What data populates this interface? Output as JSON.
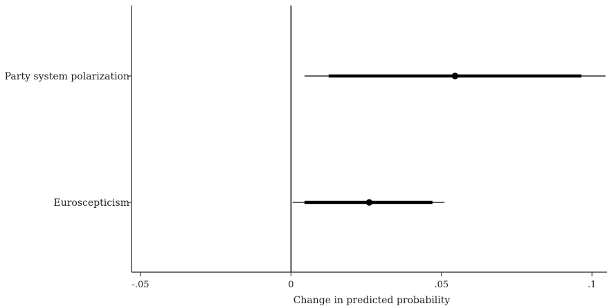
{
  "chart_data": {
    "type": "coefficient-plot",
    "title": "",
    "xlabel": "Change in predicted probability",
    "ylabel": "",
    "xlim": [
      -0.053,
      0.105
    ],
    "x_ticks": [
      {
        "value": -0.05,
        "label": "-.05"
      },
      {
        "value": 0,
        "label": "0"
      },
      {
        "value": 0.05,
        "label": ".05"
      },
      {
        "value": 0.1,
        "label": ".1"
      }
    ],
    "reference_line": 0,
    "grid": false,
    "items": [
      {
        "label": "Party system polarization",
        "estimate": 0.0545,
        "ci_inner": [
          0.0125,
          0.0965
        ],
        "ci_outer": [
          0.0045,
          0.1045
        ]
      },
      {
        "label": "Euroscepticism",
        "estimate": 0.026,
        "ci_inner": [
          0.0045,
          0.047
        ],
        "ci_outer": [
          0.0005,
          0.051
        ]
      }
    ],
    "colors": {
      "marker": "#000000",
      "axis": "#222222"
    }
  }
}
